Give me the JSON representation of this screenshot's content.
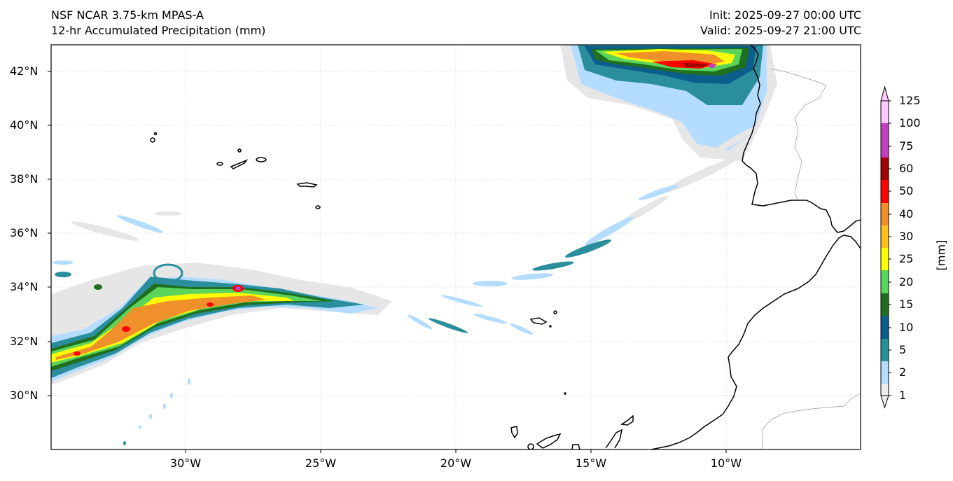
{
  "header": {
    "model": "NSF NCAR 3.75-km MPAS-A",
    "field": "12-hr Accumulated Precipitation (mm)",
    "init": "Init: 2025-09-27 00:00 UTC",
    "valid": "Valid: 2025-09-27 21:00 UTC"
  },
  "map": {
    "lat_ticks": [
      "42°N",
      "40°N",
      "38°N",
      "36°N",
      "34°N",
      "32°N",
      "30°N"
    ],
    "lon_ticks": [
      "30°W",
      "25°W",
      "20°W",
      "15°W",
      "10°W"
    ]
  },
  "colorbar": {
    "units": "[mm]",
    "labels": [
      "125",
      "100",
      "75",
      "60",
      "50",
      "40",
      "30",
      "25",
      "20",
      "15",
      "10",
      "5",
      "2",
      "1"
    ],
    "colors": [
      "#eeeeee",
      "#b3dcff",
      "#2a8e9c",
      "#0b5d8c",
      "#1f6f1f",
      "#5ad45a",
      "#ffff00",
      "#ffc021",
      "#f0902a",
      "#ff0000",
      "#a00000",
      "#c040c0",
      "#ffc8ff"
    ]
  }
}
